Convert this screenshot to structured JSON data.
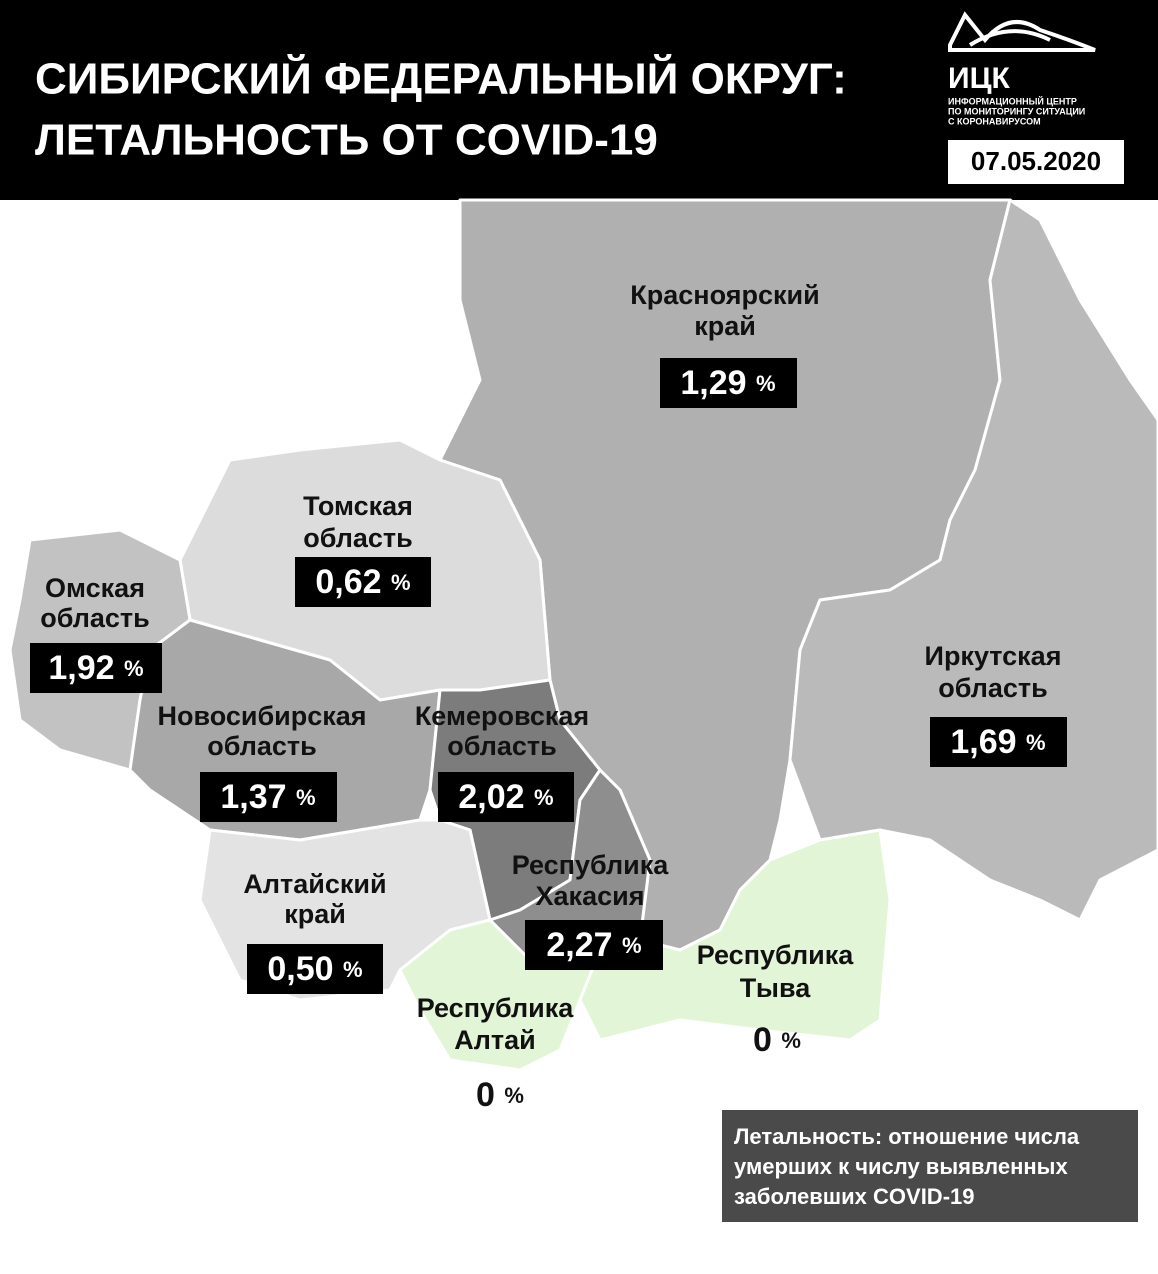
{
  "header": {
    "title": [
      "СИБИРСКИЙ ФЕДЕРАЛЬНЫЙ ОКРУГ:",
      "ЛЕТАЛЬНОСТЬ ОТ COVID-19"
    ],
    "logo": {
      "abbr": "ИЦК",
      "subtitle": [
        "ИНФОРМАЦИОННЫЙ ЦЕНТР",
        "ПО МОНИТОРИНГУ СИТУАЦИИ",
        "С КОРОНАВИРУСОМ"
      ]
    },
    "date": "07.05.2020"
  },
  "regions": [
    {
      "name": [
        "Красноярский",
        "край"
      ],
      "value": "1,29",
      "unit": "%"
    },
    {
      "name": [
        "Томская",
        "область"
      ],
      "value": "0,62",
      "unit": "%"
    },
    {
      "name": [
        "Омская",
        "область"
      ],
      "value": "1,92",
      "unit": "%"
    },
    {
      "name": [
        "Новосибирская",
        "область"
      ],
      "value": "1,37",
      "unit": "%"
    },
    {
      "name": [
        "Кемеровская",
        "область"
      ],
      "value": "2,02",
      "unit": "%"
    },
    {
      "name": [
        "Республика",
        "Хакасия"
      ],
      "value": "2,27",
      "unit": "%"
    },
    {
      "name": [
        "Алтайский",
        "край"
      ],
      "value": "0,50",
      "unit": "%"
    },
    {
      "name": [
        "Иркутская",
        "область"
      ],
      "value": "1,69",
      "unit": "%"
    },
    {
      "name": [
        "Республика",
        "Алтай"
      ],
      "value": "0",
      "unit": "%"
    },
    {
      "name": [
        "Республика",
        "Тыва"
      ],
      "value": "0",
      "unit": "%"
    }
  ],
  "note": [
    "Летальность: отношение числа",
    "умерших к числу выявленных",
    "заболевших COVID-19"
  ]
}
